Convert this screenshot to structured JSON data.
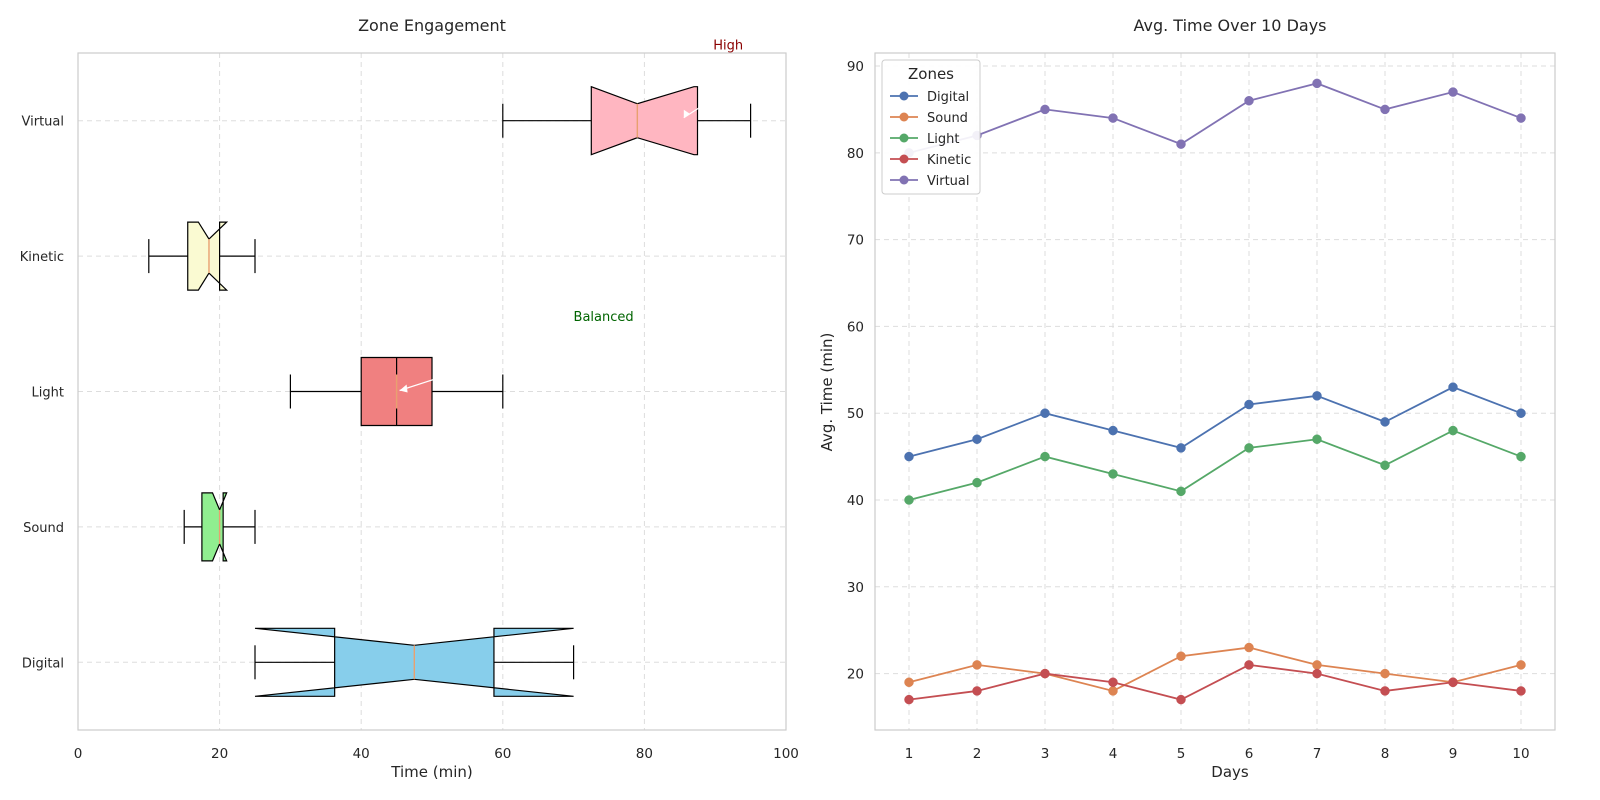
{
  "chart_data": [
    {
      "type": "boxplot",
      "title": "Zone Engagement",
      "xlabel": "Time (min)",
      "ylabel": "",
      "xlim": [
        0,
        100
      ],
      "xticks": [
        0,
        20,
        40,
        60,
        80,
        100
      ],
      "grid": true,
      "orientation": "horizontal",
      "notched": true,
      "categories": [
        "Digital",
        "Sound",
        "Light",
        "Kinetic",
        "Virtual"
      ],
      "boxes": [
        {
          "name": "Digital",
          "whisker_low": 25,
          "q1": 36.25,
          "median": 47.5,
          "q3": 58.75,
          "whisker_high": 70,
          "notch_low": 25,
          "notch_high": 70,
          "color": "#87ceeb"
        },
        {
          "name": "Sound",
          "whisker_low": 15,
          "q1": 17.5,
          "median": 20,
          "q3": 20.5,
          "whisker_high": 25,
          "notch_low": 19,
          "notch_high": 21,
          "color": "#90ee90"
        },
        {
          "name": "Light",
          "whisker_low": 30,
          "q1": 40,
          "median": 45,
          "q3": 50,
          "whisker_high": 60,
          "notch_low": 45,
          "notch_high": 45,
          "color": "#f08080"
        },
        {
          "name": "Kinetic",
          "whisker_low": 10,
          "q1": 15.5,
          "median": 18.5,
          "q3": 20,
          "whisker_high": 25,
          "notch_low": 17,
          "notch_high": 21,
          "color": "#fafad2"
        },
        {
          "name": "Virtual",
          "whisker_low": 60,
          "q1": 72.5,
          "median": 79,
          "q3": 87.5,
          "whisker_high": 95,
          "notch_low": 72.5,
          "notch_high": 87,
          "color": "#ffb6c1"
        }
      ],
      "annotations": [
        {
          "text": "High",
          "color": "#8b0000",
          "text_x": 90,
          "text_y": "above Virtual",
          "arrow_x": 85,
          "arrow_y": "Virtual"
        },
        {
          "text": "Balanced",
          "color": "#006400",
          "text_x": 70,
          "text_y": "between Kinetic and Light",
          "arrow_x": 45,
          "arrow_y": "Light"
        }
      ]
    },
    {
      "type": "line",
      "title": "Avg. Time Over 10 Days",
      "xlabel": "Days",
      "ylabel": "Avg. Time (min)",
      "x": [
        1,
        2,
        3,
        4,
        5,
        6,
        7,
        8,
        9,
        10
      ],
      "ylim": [
        13.5,
        91.5
      ],
      "yticks": [
        20,
        30,
        40,
        50,
        60,
        70,
        80,
        90
      ],
      "grid": true,
      "legend": {
        "title": "Zones",
        "placement": "top-left"
      },
      "series": [
        {
          "name": "Digital",
          "color": "#4c72b0",
          "values": [
            45,
            47,
            50,
            48,
            46,
            51,
            52,
            49,
            53,
            50
          ]
        },
        {
          "name": "Sound",
          "color": "#dd8452",
          "values": [
            19,
            21,
            20,
            18,
            22,
            23,
            21,
            20,
            19,
            21
          ]
        },
        {
          "name": "Light",
          "color": "#55a868",
          "values": [
            40,
            42,
            45,
            43,
            41,
            46,
            47,
            44,
            48,
            45
          ]
        },
        {
          "name": "Kinetic",
          "color": "#c44e52",
          "values": [
            17,
            18,
            20,
            19,
            17,
            21,
            20,
            18,
            19,
            18
          ]
        },
        {
          "name": "Virtual",
          "color": "#8172b3",
          "values": [
            80,
            82,
            85,
            84,
            81,
            86,
            88,
            85,
            87,
            84
          ]
        }
      ]
    }
  ]
}
